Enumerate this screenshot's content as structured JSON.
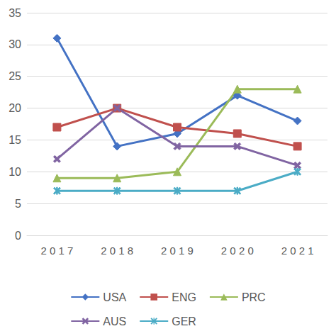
{
  "chart_data": {
    "type": "line",
    "categories": [
      "2017",
      "2018",
      "2019",
      "2020",
      "2021"
    ],
    "series": [
      {
        "name": "USA",
        "color": "#4472c4",
        "marker": "diamond",
        "values": [
          31,
          14,
          16,
          22,
          18
        ]
      },
      {
        "name": "ENG",
        "color": "#c0504d",
        "marker": "square",
        "values": [
          17,
          20,
          17,
          16,
          14
        ]
      },
      {
        "name": "PRC",
        "color": "#9bbb59",
        "marker": "triangle",
        "values": [
          9,
          9,
          10,
          23,
          23
        ]
      },
      {
        "name": "AUS",
        "color": "#8064a2",
        "marker": "x",
        "values": [
          12,
          20,
          14,
          14,
          11
        ]
      },
      {
        "name": "GER",
        "color": "#4bacc6",
        "marker": "star",
        "values": [
          7,
          7,
          7,
          7,
          10
        ]
      }
    ],
    "ylim": [
      0,
      35
    ],
    "yticks": [
      0,
      5,
      10,
      15,
      20,
      25,
      30,
      35
    ],
    "grid": true,
    "legend": "bottom"
  }
}
